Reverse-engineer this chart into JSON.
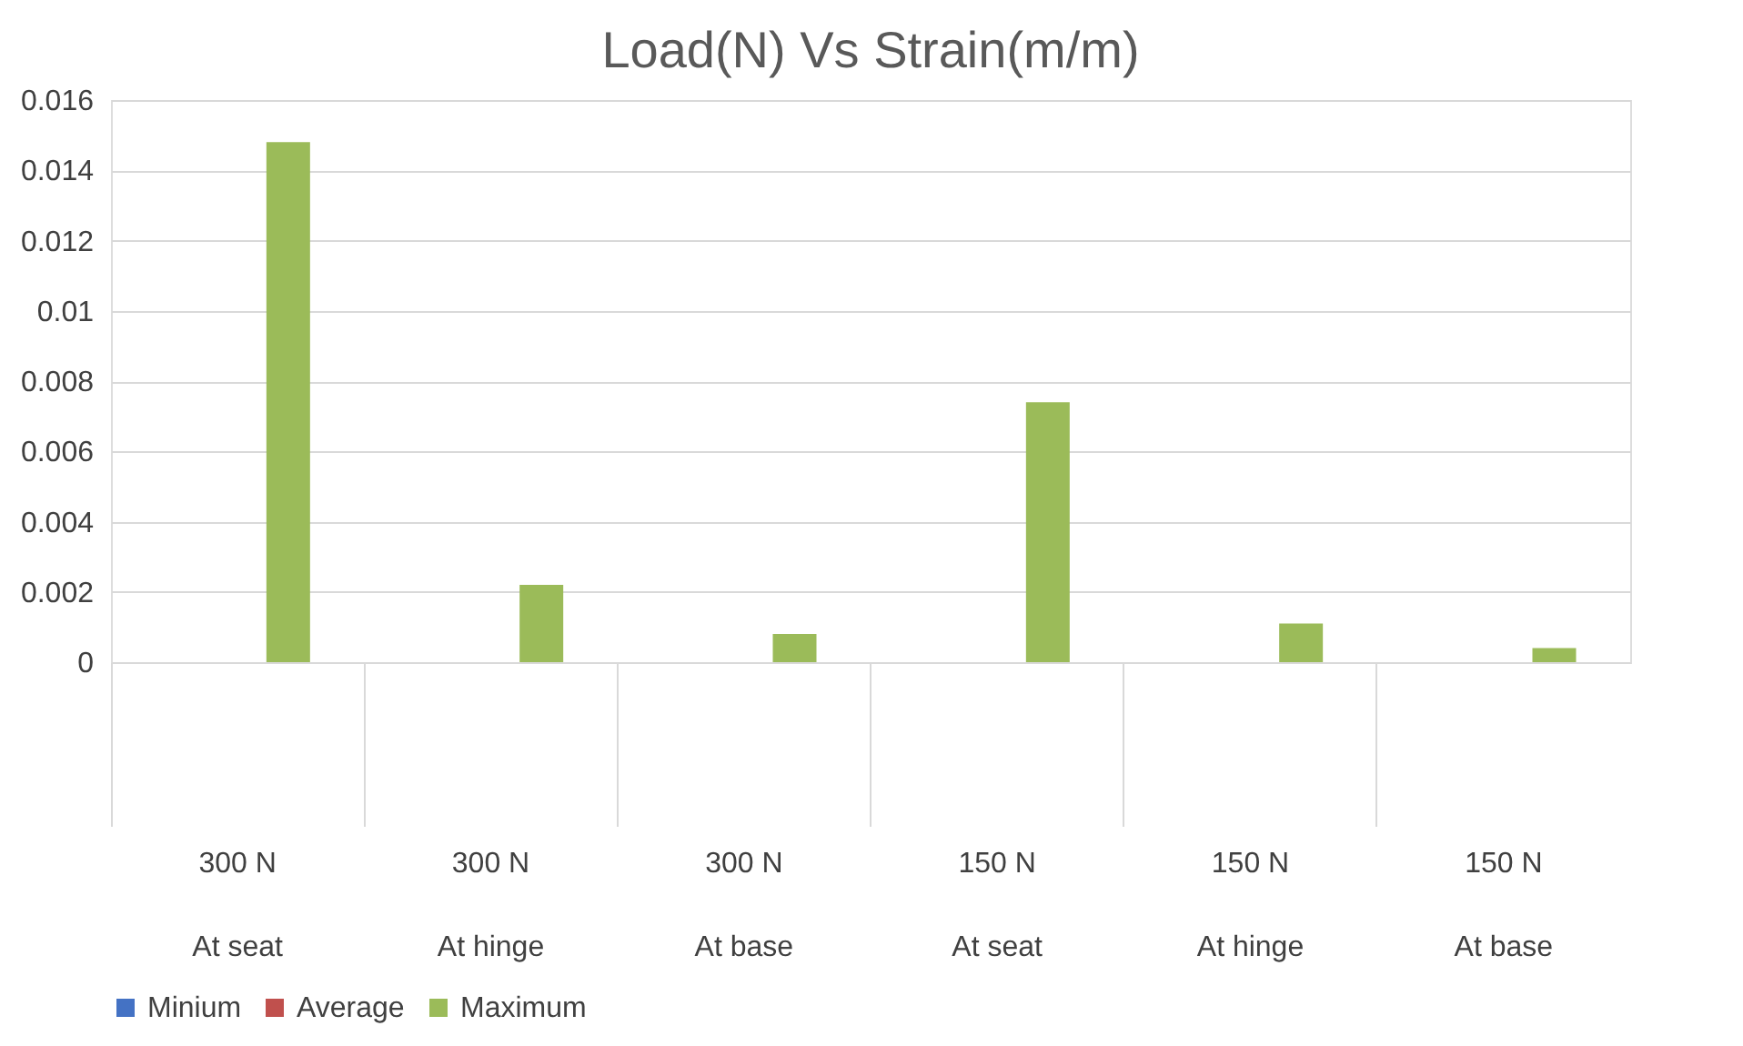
{
  "chart_data": {
    "type": "bar",
    "title": "Load(N) Vs Strain(m/m)",
    "categories": [
      "300 N\nAt seat",
      "300 N\nAt hinge",
      "300 N\nAt base",
      "150 N\nAt seat",
      "150 N\nAt hinge",
      "150 N\nAt base"
    ],
    "series": [
      {
        "name": "Minium",
        "color": "#4472c4",
        "values": [
          0,
          0,
          0,
          0,
          0,
          0
        ]
      },
      {
        "name": "Average",
        "color": "#c0504d",
        "values": [
          0,
          0,
          0,
          0,
          0,
          0
        ]
      },
      {
        "name": "Maximum",
        "color": "#9bbb59",
        "values": [
          0.0148,
          0.0022,
          0.0008,
          0.0074,
          0.0011,
          0.0004
        ]
      }
    ],
    "ylim": [
      0,
      0.016
    ],
    "yticks": [
      0,
      0.002,
      0.004,
      0.006,
      0.008,
      0.01,
      0.012,
      0.014,
      0.016
    ],
    "grid": "y",
    "legend": "bottom"
  }
}
